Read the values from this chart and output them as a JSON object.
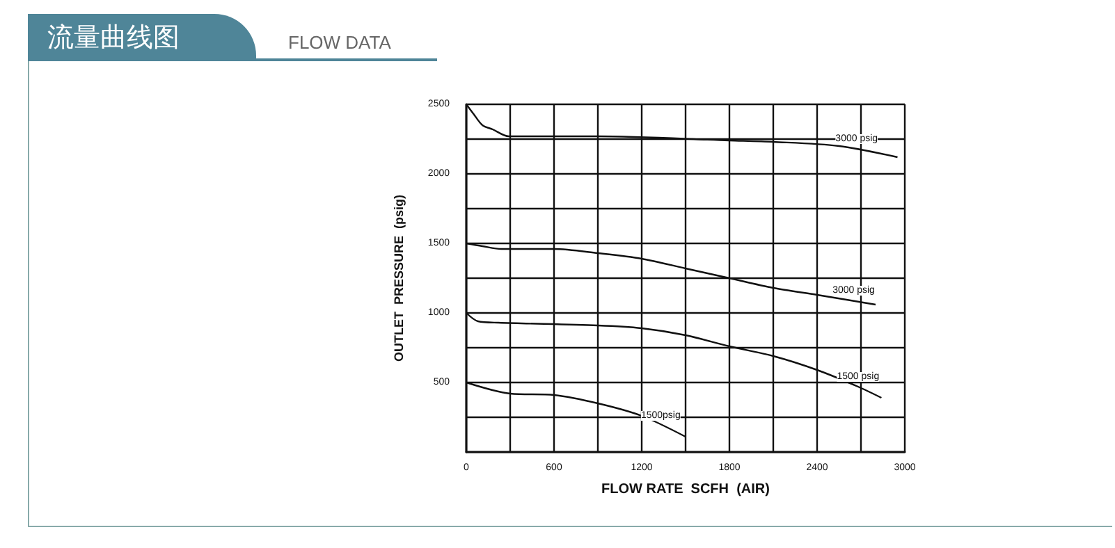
{
  "chart_data": {
    "type": "line",
    "title": "流量曲线图",
    "subtitle": "FLOW DATA",
    "xlabel": "FLOW RATE  SCFH  (AIR)",
    "ylabel": "OUTLET  PRESSURE  (psig)",
    "series": [
      {
        "color": "#111111",
        "x": [
          0,
          50,
          110,
          180,
          290,
          900,
          1800,
          2100,
          2550,
          2950
        ],
        "values": [
          2500,
          2430,
          2350,
          2320,
          2270,
          2270,
          2240,
          2230,
          2200,
          2120
        ]
      },
      {
        "color": "#111111",
        "x": [
          0,
          110,
          240,
          600,
          900,
          1200,
          1500,
          1800,
          2100,
          2400,
          2800
        ],
        "values": [
          1500,
          1480,
          1460,
          1460,
          1430,
          1390,
          1320,
          1250,
          1180,
          1130,
          1060
        ]
      },
      {
        "color": "#111111",
        "x": [
          0,
          80,
          220,
          900,
          1200,
          1500,
          1800,
          2100,
          2400,
          2680,
          2840
        ],
        "values": [
          1000,
          940,
          930,
          910,
          890,
          840,
          760,
          690,
          590,
          470,
          390
        ]
      },
      {
        "color": "#111111",
        "x": [
          0,
          300,
          600,
          900,
          1200,
          1500
        ],
        "values": [
          500,
          420,
          410,
          350,
          260,
          110
        ]
      }
    ],
    "annotations": [
      {
        "text": "3000 psig",
        "x": 2670,
        "y": 2180
      },
      {
        "text": "3000 psig",
        "x": 2650,
        "y": 1090
      },
      {
        "text": "1500 psig",
        "x": 2680,
        "y": 470
      },
      {
        "text": "1500psig",
        "x": 1330,
        "y": 190
      }
    ],
    "xlim": [
      0,
      3000
    ],
    "ylim": [
      0,
      2500
    ],
    "xticks": [
      0,
      {
        "value": 300,
        "label": null
      },
      600,
      {
        "value": 900,
        "label": null
      },
      1200,
      {
        "value": 1500,
        "label": null
      },
      1800,
      {
        "value": 2100,
        "label": null
      },
      2400,
      {
        "value": 2700,
        "label": null
      },
      3000
    ],
    "yticks": [
      {
        "value": 0,
        "label": null
      },
      {
        "value": 250,
        "label": null
      },
      500,
      {
        "value": 750,
        "label": null
      },
      1000,
      {
        "value": 1250,
        "label": null
      },
      1500,
      {
        "value": 1750,
        "label": null
      },
      2000,
      {
        "value": 2250,
        "label": null
      },
      2500
    ],
    "grid": true,
    "marker": "none",
    "line_style": "solid"
  }
}
